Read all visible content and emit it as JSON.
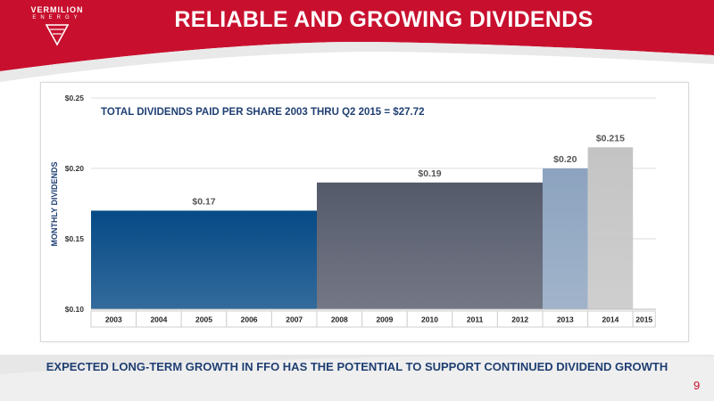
{
  "brand": {
    "name": "VERMILION",
    "sub": "ENERGY"
  },
  "slide": {
    "title": "RELIABLE AND GROWING DIVIDENDS",
    "footer": "EXPECTED LONG-TERM GROWTH IN FFO HAS THE POTENTIAL TO SUPPORT CONTINUED DIVIDEND GROWTH",
    "page_number": "9"
  },
  "colors": {
    "brand_red": "#c8102e",
    "navy": "#1f3f73"
  },
  "chart_data": {
    "type": "bar",
    "title": "TOTAL DIVIDENDS PAID PER SHARE 2003 THRU Q2 2015 = $27.72",
    "ylabel": "MONTHLY DIVIDENDS",
    "xlabel": "",
    "ylim": [
      0.1,
      0.25
    ],
    "yticks": [
      "$0.10",
      "$0.15",
      "$0.20",
      "$0.25"
    ],
    "ytick_values": [
      0.1,
      0.15,
      0.2,
      0.25
    ],
    "grid": true,
    "categories": [
      "2003",
      "2004",
      "2005",
      "2006",
      "2007",
      "2008",
      "2009",
      "2010",
      "2011",
      "2012",
      "2013",
      "2014",
      "2015"
    ],
    "bars": [
      {
        "start": "2003",
        "end": "2007",
        "value": 0.17,
        "label": "$0.17",
        "color": "#064a86"
      },
      {
        "start": "2008",
        "end": "2012",
        "value": 0.19,
        "label": "$0.19",
        "color": "#555a6b"
      },
      {
        "start": "2013",
        "end": "2013",
        "value": 0.2,
        "label": "$0.20",
        "color": "#8ca3bf"
      },
      {
        "start": "2014",
        "end": "2014",
        "value": 0.215,
        "label": "$0.215",
        "color": "#c4c4c4"
      }
    ]
  }
}
